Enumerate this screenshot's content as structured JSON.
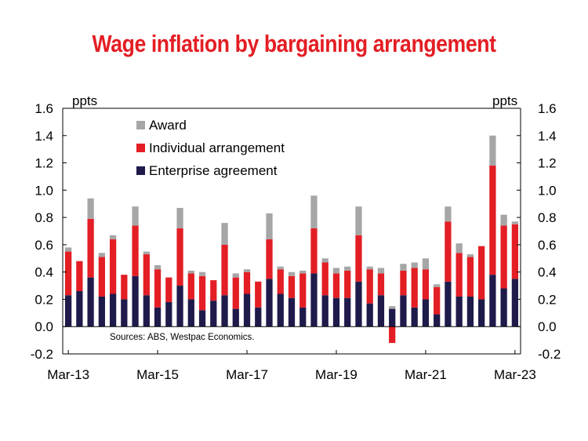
{
  "chart_data": {
    "type": "bar",
    "stacked": true,
    "title": "Wage inflation by bargaining arrangement",
    "y_unit_left": "ppts",
    "y_unit_right": "ppts",
    "ylim": [
      -0.2,
      1.6
    ],
    "yticks": [
      "1.6",
      "1.4",
      "1.2",
      "1.0",
      "0.8",
      "0.6",
      "0.4",
      "0.2",
      "0.0",
      "-0.2"
    ],
    "ytick_values": [
      1.6,
      1.4,
      1.2,
      1.0,
      0.8,
      0.6,
      0.4,
      0.2,
      0.0,
      -0.2
    ],
    "xtick_labels": [
      "Mar-13",
      "Mar-15",
      "Mar-17",
      "Mar-19",
      "Mar-21",
      "Mar-23"
    ],
    "xtick_indices": [
      0,
      8,
      16,
      24,
      32,
      40
    ],
    "grid": false,
    "legend_position": "top-left",
    "source": "Sources: ABS, Westpac Economics.",
    "colors": {
      "enterprise": "#1e1b4b",
      "individual": "#e31e24",
      "award": "#a6a6a6"
    },
    "categories": [
      "Mar-13",
      "Jun-13",
      "Sep-13",
      "Dec-13",
      "Mar-14",
      "Jun-14",
      "Sep-14",
      "Dec-14",
      "Mar-15",
      "Jun-15",
      "Sep-15",
      "Dec-15",
      "Mar-16",
      "Jun-16",
      "Sep-16",
      "Dec-16",
      "Mar-17",
      "Jun-17",
      "Sep-17",
      "Dec-17",
      "Mar-18",
      "Jun-18",
      "Sep-18",
      "Dec-18",
      "Mar-19",
      "Jun-19",
      "Sep-19",
      "Dec-19",
      "Mar-20",
      "Jun-20",
      "Sep-20",
      "Dec-20",
      "Mar-21",
      "Jun-21",
      "Sep-21",
      "Dec-21",
      "Mar-22",
      "Jun-22",
      "Sep-22",
      "Dec-22",
      "Mar-23"
    ],
    "series": [
      {
        "name": "Enterprise agreement",
        "values": [
          0.23,
          0.26,
          0.36,
          0.22,
          0.24,
          0.2,
          0.37,
          0.23,
          0.14,
          0.18,
          0.3,
          0.2,
          0.12,
          0.19,
          0.23,
          0.13,
          0.24,
          0.14,
          0.35,
          0.24,
          0.21,
          0.14,
          0.39,
          0.23,
          0.21,
          0.21,
          0.33,
          0.17,
          0.23,
          0.13,
          0.23,
          0.14,
          0.2,
          0.09,
          0.33,
          0.22,
          0.22,
          0.2,
          0.38,
          0.28,
          0.35
        ]
      },
      {
        "name": "Individual arrangement",
        "values": [
          0.32,
          0.22,
          0.43,
          0.29,
          0.4,
          0.18,
          0.37,
          0.3,
          0.28,
          0.18,
          0.42,
          0.19,
          0.25,
          0.15,
          0.37,
          0.23,
          0.16,
          0.19,
          0.29,
          0.18,
          0.16,
          0.25,
          0.33,
          0.24,
          0.18,
          0.2,
          0.34,
          0.25,
          0.16,
          -0.12,
          0.18,
          0.29,
          0.22,
          0.2,
          0.44,
          0.32,
          0.29,
          0.39,
          0.8,
          0.46,
          0.4
        ]
      },
      {
        "name": "Award",
        "values": [
          0.03,
          0.0,
          0.15,
          0.03,
          0.03,
          0.0,
          0.14,
          0.02,
          0.03,
          0.0,
          0.15,
          0.02,
          0.03,
          0.0,
          0.16,
          0.03,
          0.02,
          0.0,
          0.19,
          0.02,
          0.03,
          0.02,
          0.24,
          0.03,
          0.04,
          0.03,
          0.21,
          0.02,
          0.04,
          0.02,
          0.05,
          0.04,
          0.08,
          0.02,
          0.11,
          0.07,
          0.02,
          0.0,
          0.22,
          0.08,
          0.02
        ]
      }
    ]
  }
}
